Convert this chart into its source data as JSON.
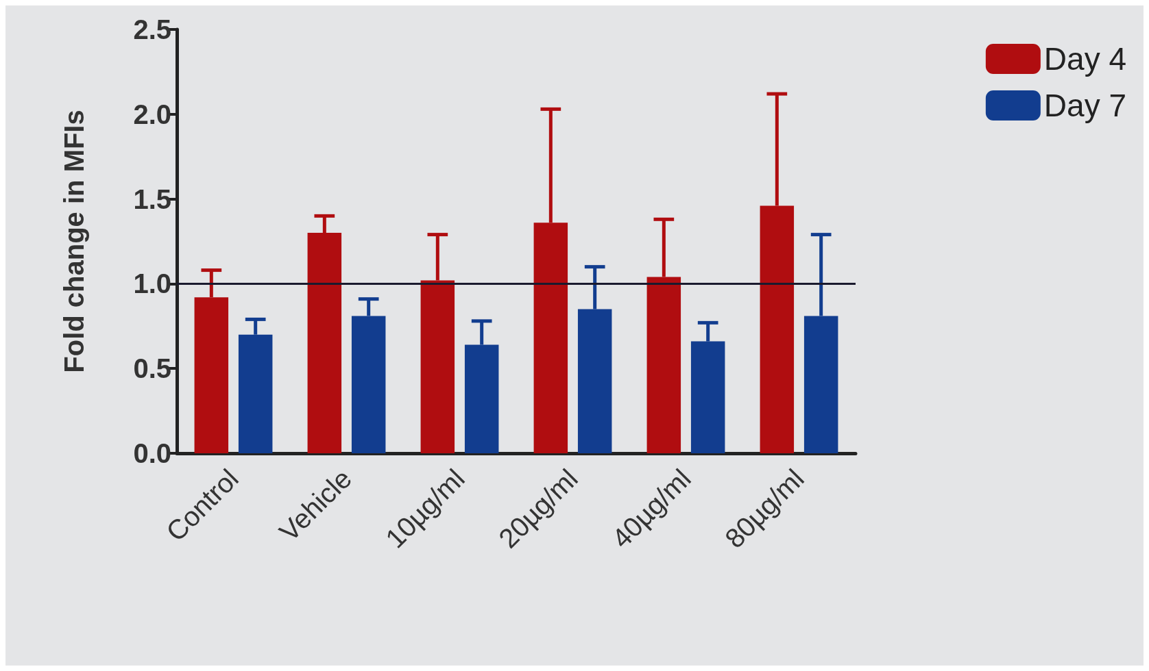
{
  "chart_data": {
    "type": "bar",
    "ylabel": "Fold change in MFIs",
    "categories": [
      "Control",
      "Vehicle",
      "10µg/ml",
      "20µg/ml",
      "40µg/ml",
      "80µg/ml"
    ],
    "series": [
      {
        "name": "Day 4",
        "color": "#b00d10",
        "values": [
          0.92,
          1.3,
          1.02,
          1.36,
          1.04,
          1.46
        ],
        "errors": [
          [
            0.92,
            1.08
          ],
          [
            1.3,
            1.4
          ],
          [
            1.02,
            1.29
          ],
          [
            1.36,
            2.03
          ],
          [
            1.04,
            1.38
          ],
          [
            1.46,
            2.12
          ]
        ]
      },
      {
        "name": "Day 7",
        "color": "#123d8f",
        "values": [
          0.7,
          0.81,
          0.64,
          0.85,
          0.66,
          0.81
        ],
        "errors": [
          [
            0.7,
            0.79
          ],
          [
            0.81,
            0.91
          ],
          [
            0.64,
            0.78
          ],
          [
            0.85,
            1.1
          ],
          [
            0.66,
            0.77
          ],
          [
            0.81,
            1.29
          ]
        ]
      }
    ],
    "ylim": [
      0,
      2.5
    ],
    "yticks": [
      {
        "value": 0,
        "label": "0.0"
      },
      {
        "value": 0.5,
        "label": "0.5"
      },
      {
        "value": 1,
        "label": "1.0"
      },
      {
        "value": 1.5,
        "label": "1.5"
      },
      {
        "value": 2,
        "label": "2.0"
      },
      {
        "value": 2.5,
        "label": "2.5"
      }
    ],
    "ref_lines": [
      {
        "axis": "y",
        "value": 1,
        "color": "#1a1a2e"
      }
    ],
    "grid": false,
    "legend": "top right"
  }
}
